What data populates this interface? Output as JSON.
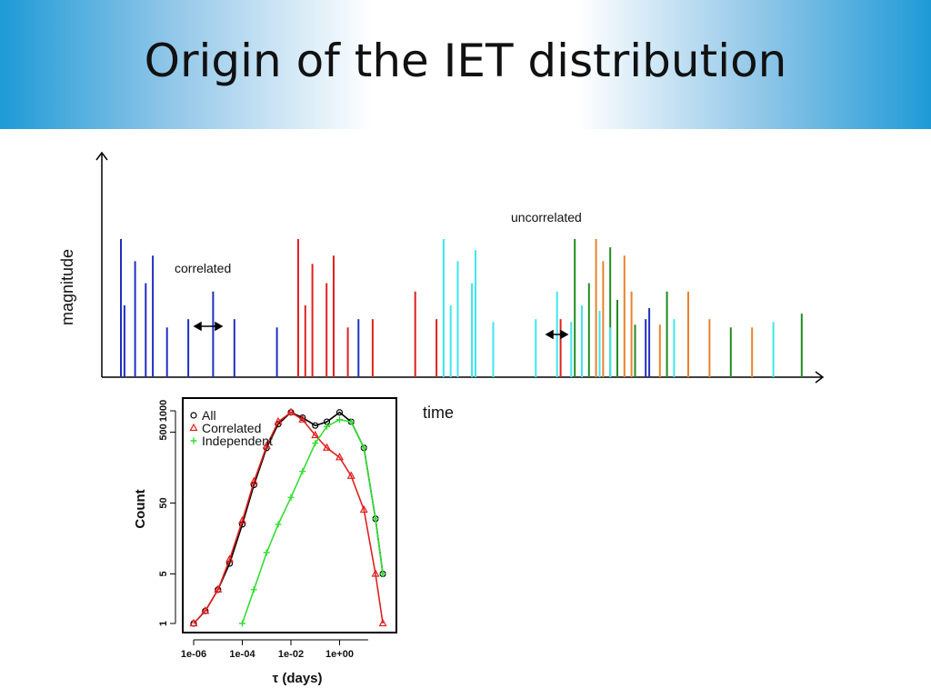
{
  "slide": {
    "title": "Origin of the IET distribution",
    "colors": {
      "title_band_edge": "#1e9ad6",
      "title_band_center": "#ffffff"
    }
  },
  "chart_data": [
    {
      "type": "bar",
      "xlabel": "time",
      "ylabel": "magnitude",
      "annotations": {
        "correlated": "correlated",
        "uncorrelated": "uncorrelated"
      },
      "colors": {
        "blue": "#1f2fbf",
        "red": "#e0201f",
        "cyan": "#3fe6ef",
        "orange": "#e8822a",
        "green": "#1f8a1f"
      },
      "events": [
        {
          "t": 0.0,
          "m": 1.0,
          "c": "blue"
        },
        {
          "t": 0.01,
          "m": 0.52,
          "c": "blue"
        },
        {
          "t": 0.04,
          "m": 0.84,
          "c": "blue"
        },
        {
          "t": 0.07,
          "m": 0.68,
          "c": "blue"
        },
        {
          "t": 0.09,
          "m": 0.88,
          "c": "blue"
        },
        {
          "t": 0.13,
          "m": 0.36,
          "c": "blue"
        },
        {
          "t": 0.19,
          "m": 0.42,
          "c": "blue"
        },
        {
          "t": 0.26,
          "m": 0.62,
          "c": "blue"
        },
        {
          "t": 0.32,
          "m": 0.42,
          "c": "blue"
        },
        {
          "t": 0.44,
          "m": 0.36,
          "c": "blue"
        },
        {
          "t": 0.5,
          "m": 1.0,
          "c": "red"
        },
        {
          "t": 0.52,
          "m": 0.52,
          "c": "red"
        },
        {
          "t": 0.54,
          "m": 0.82,
          "c": "red"
        },
        {
          "t": 0.58,
          "m": 0.68,
          "c": "red"
        },
        {
          "t": 0.6,
          "m": 0.88,
          "c": "red"
        },
        {
          "t": 0.64,
          "m": 0.36,
          "c": "red"
        },
        {
          "t": 0.67,
          "m": 0.42,
          "c": "blue"
        },
        {
          "t": 0.71,
          "m": 0.42,
          "c": "red"
        },
        {
          "t": 0.83,
          "m": 0.62,
          "c": "red"
        },
        {
          "t": 0.89,
          "m": 0.42,
          "c": "red"
        },
        {
          "t": 0.91,
          "m": 1.0,
          "c": "cyan"
        },
        {
          "t": 0.93,
          "m": 0.52,
          "c": "cyan"
        },
        {
          "t": 0.95,
          "m": 0.84,
          "c": "cyan"
        },
        {
          "t": 0.99,
          "m": 0.68,
          "c": "cyan"
        },
        {
          "t": 1.0,
          "m": 0.92,
          "c": "cyan"
        },
        {
          "t": 1.0,
          "m": 0.4,
          "c": "cyan"
        },
        {
          "t": 1.05,
          "m": 0.4,
          "c": "cyan"
        },
        {
          "t": 1.17,
          "m": 0.42,
          "c": "cyan"
        },
        {
          "t": 1.23,
          "m": 0.62,
          "c": "cyan"
        },
        {
          "t": 1.24,
          "m": 0.42,
          "c": "red"
        },
        {
          "t": 1.27,
          "m": 0.4,
          "c": "cyan"
        },
        {
          "t": 1.28,
          "m": 1.0,
          "c": "green"
        },
        {
          "t": 1.3,
          "m": 0.52,
          "c": "cyan"
        },
        {
          "t": 1.32,
          "m": 0.68,
          "c": "green"
        },
        {
          "t": 1.34,
          "m": 1.0,
          "c": "orange"
        },
        {
          "t": 1.35,
          "m": 0.48,
          "c": "cyan"
        },
        {
          "t": 1.36,
          "m": 0.84,
          "c": "orange"
        },
        {
          "t": 1.38,
          "m": 0.94,
          "c": "green"
        },
        {
          "t": 1.38,
          "m": 0.36,
          "c": "cyan"
        },
        {
          "t": 1.4,
          "m": 0.56,
          "c": "green"
        },
        {
          "t": 1.42,
          "m": 0.88,
          "c": "orange"
        },
        {
          "t": 1.44,
          "m": 0.62,
          "c": "orange"
        },
        {
          "t": 1.45,
          "m": 0.38,
          "c": "green"
        },
        {
          "t": 1.48,
          "m": 0.42,
          "c": "blue"
        },
        {
          "t": 1.49,
          "m": 0.5,
          "c": "blue"
        },
        {
          "t": 1.52,
          "m": 0.38,
          "c": "orange"
        },
        {
          "t": 1.54,
          "m": 0.62,
          "c": "green"
        },
        {
          "t": 1.56,
          "m": 0.42,
          "c": "cyan"
        },
        {
          "t": 1.6,
          "m": 0.62,
          "c": "orange"
        },
        {
          "t": 1.66,
          "m": 0.42,
          "c": "orange"
        },
        {
          "t": 1.72,
          "m": 0.36,
          "c": "green"
        },
        {
          "t": 1.78,
          "m": 0.36,
          "c": "orange"
        },
        {
          "t": 1.84,
          "m": 0.4,
          "c": "cyan"
        },
        {
          "t": 1.92,
          "m": 0.46,
          "c": "green"
        }
      ]
    },
    {
      "type": "line",
      "xlabel": "τ (days)",
      "ylabel": "Count",
      "x_scale": "log",
      "y_scale": "log",
      "xlim": [
        1e-06,
        100
      ],
      "ylim": [
        1,
        1000
      ],
      "x_ticks": [
        "1e-06",
        "1e-04",
        "1e-02",
        "1e+00"
      ],
      "y_ticks": [
        "1",
        "5",
        "50",
        "500",
        "1000"
      ],
      "legend": [
        "All",
        "Correlated",
        "Independent"
      ],
      "legend_position": "top-left",
      "series": [
        {
          "name": "All",
          "color": "#000000",
          "marker": "circle",
          "x": [
            1e-06,
            3e-06,
            1e-05,
            3e-05,
            0.0001,
            0.0003,
            0.001,
            0.003,
            0.01,
            0.03,
            0.1,
            0.3,
            1,
            3,
            10,
            30,
            60
          ],
          "y": [
            1,
            1.5,
            3,
            7,
            25,
            90,
            300,
            650,
            950,
            800,
            620,
            700,
            950,
            700,
            300,
            30,
            5
          ]
        },
        {
          "name": "Correlated",
          "color": "#e0201f",
          "marker": "triangle",
          "x": [
            1e-06,
            3e-06,
            1e-05,
            3e-05,
            0.0001,
            0.0003,
            0.001,
            0.003,
            0.01,
            0.03,
            0.1,
            0.3,
            1,
            3,
            10,
            30,
            60
          ],
          "y": [
            1,
            1.5,
            3,
            8,
            28,
            100,
            320,
            700,
            950,
            750,
            450,
            300,
            220,
            120,
            40,
            5,
            1
          ]
        },
        {
          "name": "Independent",
          "color": "#33dd33",
          "marker": "plus",
          "x": [
            0.0001,
            0.0003,
            0.001,
            0.003,
            0.01,
            0.03,
            0.1,
            0.3,
            1,
            3,
            10,
            30,
            60
          ],
          "y": [
            1,
            3,
            10,
            25,
            60,
            140,
            350,
            600,
            750,
            700,
            300,
            30,
            5
          ]
        }
      ]
    }
  ]
}
